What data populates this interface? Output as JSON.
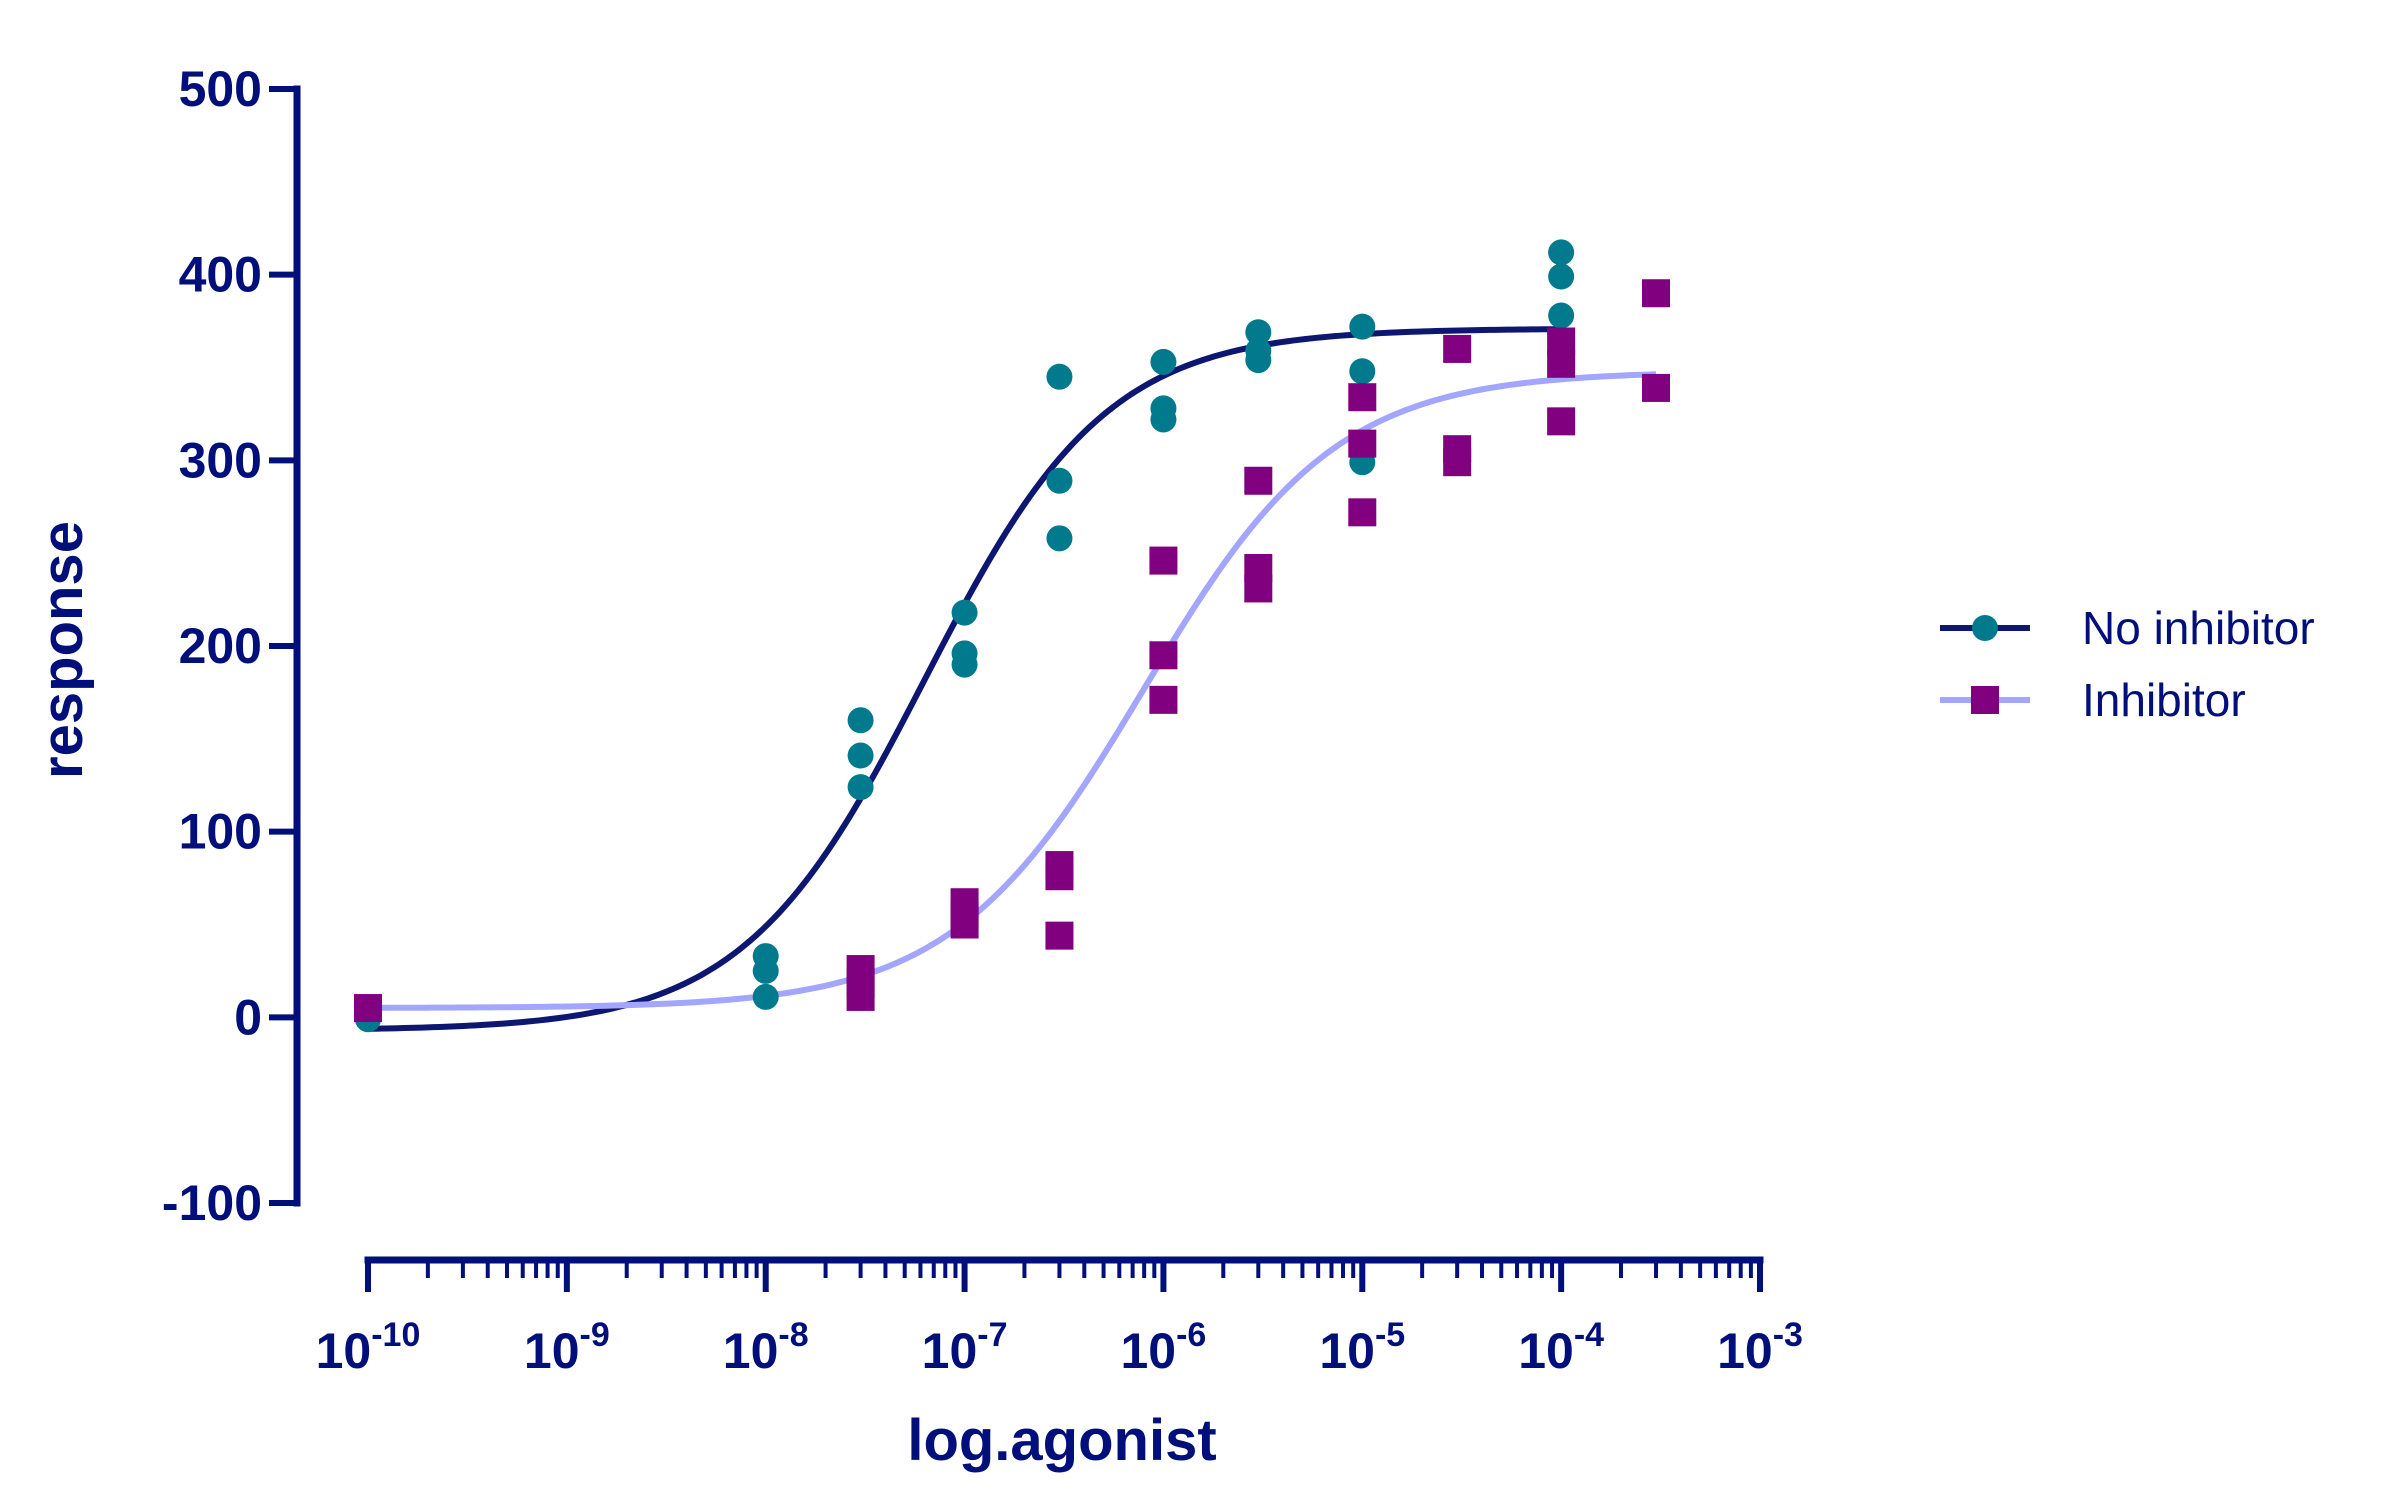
{
  "chart_data": {
    "type": "scatter",
    "title": "",
    "xlabel": "log.agonist",
    "ylabel": "response",
    "xscale": "log",
    "xlim": [
      1e-10,
      0.001
    ],
    "ylim": [
      -100,
      500
    ],
    "yticks": [
      -100,
      0,
      100,
      200,
      300,
      400,
      500
    ],
    "xticks": [
      1e-10,
      1e-09,
      1e-08,
      1e-07,
      1e-06,
      1e-05,
      0.0001,
      0.001
    ],
    "ytick_labels": [
      "-100",
      "0",
      "100",
      "200",
      "300",
      "400",
      "500"
    ],
    "xtick_labels": [
      {
        "base": "10",
        "exp": "-10"
      },
      {
        "base": "10",
        "exp": "-9"
      },
      {
        "base": "10",
        "exp": "-8"
      },
      {
        "base": "10",
        "exp": "-7"
      },
      {
        "base": "10",
        "exp": "-6"
      },
      {
        "base": "10",
        "exp": "-5"
      },
      {
        "base": "10",
        "exp": "-4"
      },
      {
        "base": "10",
        "exp": "-3"
      }
    ],
    "grid": false,
    "legend_position": "right",
    "series": [
      {
        "name": "No inhibitor",
        "marker": "circle",
        "marker_color": "#007a8c",
        "line_color": "#0d1670",
        "points": [
          [
            1e-10,
            -1
          ],
          [
            1e-08,
            33
          ],
          [
            1e-08,
            25
          ],
          [
            1e-08,
            11
          ],
          [
            3e-08,
            160
          ],
          [
            3e-08,
            141
          ],
          [
            3e-08,
            124
          ],
          [
            1e-07,
            218
          ],
          [
            1e-07,
            196
          ],
          [
            1e-07,
            190
          ],
          [
            3e-07,
            345
          ],
          [
            3e-07,
            289
          ],
          [
            3e-07,
            258
          ],
          [
            1e-06,
            353
          ],
          [
            1e-06,
            328
          ],
          [
            1e-06,
            322
          ],
          [
            3e-06,
            369
          ],
          [
            3e-06,
            359
          ],
          [
            3e-06,
            354
          ],
          [
            1e-05,
            372
          ],
          [
            1e-05,
            348
          ],
          [
            1e-05,
            299
          ],
          [
            0.0001,
            412
          ],
          [
            0.0001,
            399
          ],
          [
            0.0001,
            378
          ]
        ],
        "fit": {
          "bottom": -7,
          "top": 371,
          "logEC50": -7.2,
          "hill": 0.95,
          "x_range": [
            1e-10,
            0.0001
          ]
        }
      },
      {
        "name": "Inhibitor",
        "marker": "square",
        "marker_color": "#800080",
        "line_color": "#a3a6ff",
        "points": [
          [
            1e-10,
            5
          ],
          [
            3e-08,
            26
          ],
          [
            3e-08,
            18
          ],
          [
            3e-08,
            11
          ],
          [
            1e-07,
            62
          ],
          [
            1e-07,
            55
          ],
          [
            1e-07,
            50
          ],
          [
            3e-07,
            82
          ],
          [
            3e-07,
            76
          ],
          [
            3e-07,
            44
          ],
          [
            1e-06,
            246
          ],
          [
            1e-06,
            195
          ],
          [
            1e-06,
            171
          ],
          [
            3e-06,
            289
          ],
          [
            3e-06,
            242
          ],
          [
            3e-06,
            231
          ],
          [
            1e-05,
            334
          ],
          [
            1e-05,
            309
          ],
          [
            1e-05,
            272
          ],
          [
            3e-05,
            360
          ],
          [
            3e-05,
            306
          ],
          [
            3e-05,
            299
          ],
          [
            0.0001,
            364
          ],
          [
            0.0001,
            352
          ],
          [
            0.0001,
            321
          ],
          [
            0.0003,
            390
          ],
          [
            0.0003,
            339
          ]
        ],
        "fit": {
          "bottom": 5,
          "top": 348,
          "logEC50": -6.1,
          "hill": 0.9,
          "x_range": [
            1e-10,
            0.0003
          ]
        }
      }
    ]
  }
}
